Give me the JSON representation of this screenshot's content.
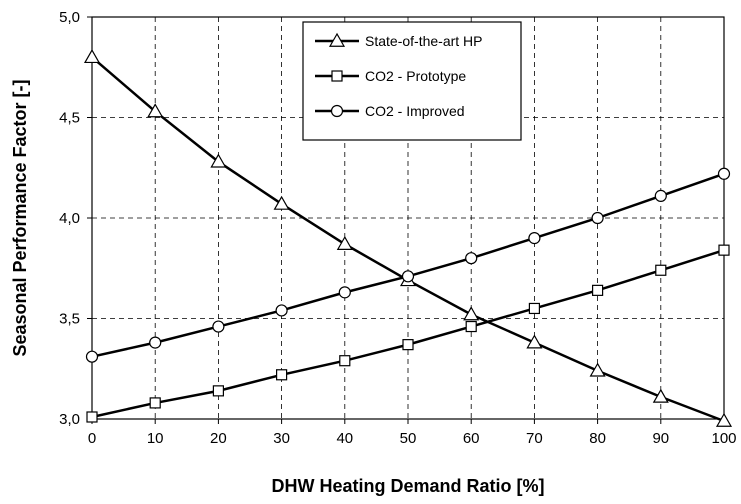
{
  "chart_data": {
    "type": "line",
    "title": "",
    "xlabel": "DHW Heating Demand Ratio [%]",
    "ylabel": "Seasonal Performance Factor [-]",
    "x": [
      0,
      10,
      20,
      30,
      40,
      50,
      60,
      70,
      80,
      90,
      100
    ],
    "xlim": [
      0,
      100
    ],
    "ylim": [
      3.0,
      5.0
    ],
    "x_ticks": [
      "0",
      "10",
      "20",
      "30",
      "40",
      "50",
      "60",
      "70",
      "80",
      "90",
      "100"
    ],
    "y_ticks": [
      "3,0",
      "3,5",
      "4,0",
      "4,5",
      "5,0"
    ],
    "grid": true,
    "grid_style": "dashed",
    "legend_position": "top-center",
    "series": [
      {
        "name": "State-of-the-art HP",
        "marker": "triangle",
        "values": [
          4.8,
          4.53,
          4.28,
          4.07,
          3.87,
          3.69,
          3.52,
          3.38,
          3.24,
          3.11,
          2.99
        ]
      },
      {
        "name": "CO2 - Prototype",
        "marker": "square",
        "values": [
          3.01,
          3.08,
          3.14,
          3.22,
          3.29,
          3.37,
          3.46,
          3.55,
          3.64,
          3.74,
          3.84
        ]
      },
      {
        "name": "CO2 - Improved",
        "marker": "circle",
        "values": [
          3.31,
          3.38,
          3.46,
          3.54,
          3.63,
          3.71,
          3.8,
          3.9,
          4.0,
          4.11,
          4.22
        ]
      }
    ]
  }
}
